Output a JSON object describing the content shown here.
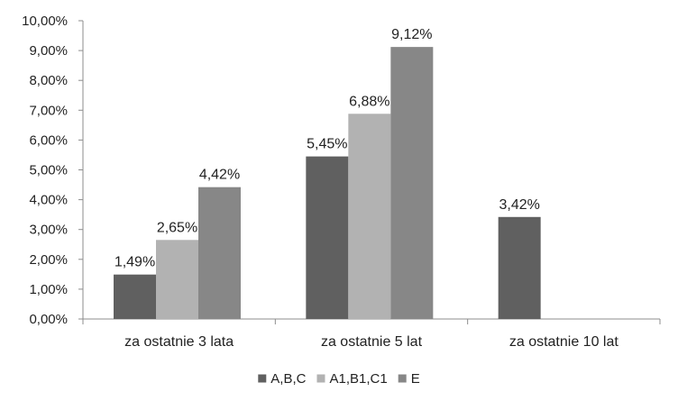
{
  "chart_data": {
    "type": "bar",
    "categories": [
      "za ostatnie 3 lata",
      "za ostatnie 5 lat",
      "za ostatnie 10 lat"
    ],
    "series": [
      {
        "name": "A,B,C",
        "color": "#606060",
        "values": [
          1.49,
          5.45,
          3.42
        ],
        "labels": [
          "1,49%",
          "5,45%",
          "3,42%"
        ]
      },
      {
        "name": "A1,B1,C1",
        "color": "#b2b2b2",
        "values": [
          2.65,
          6.88,
          null
        ],
        "labels": [
          "2,65%",
          "6,88%",
          ""
        ]
      },
      {
        "name": "E",
        "color": "#878787",
        "values": [
          4.42,
          9.12,
          null
        ],
        "labels": [
          "4,42%",
          "9,12%",
          ""
        ]
      }
    ],
    "y_ticks": [
      "0,00%",
      "1,00%",
      "2,00%",
      "3,00%",
      "4,00%",
      "5,00%",
      "6,00%",
      "7,00%",
      "8,00%",
      "9,00%",
      "10,00%"
    ],
    "ylim": [
      0,
      10
    ],
    "grid": false,
    "legend_position": "bottom",
    "title": "",
    "xlabel": "",
    "ylabel": ""
  }
}
